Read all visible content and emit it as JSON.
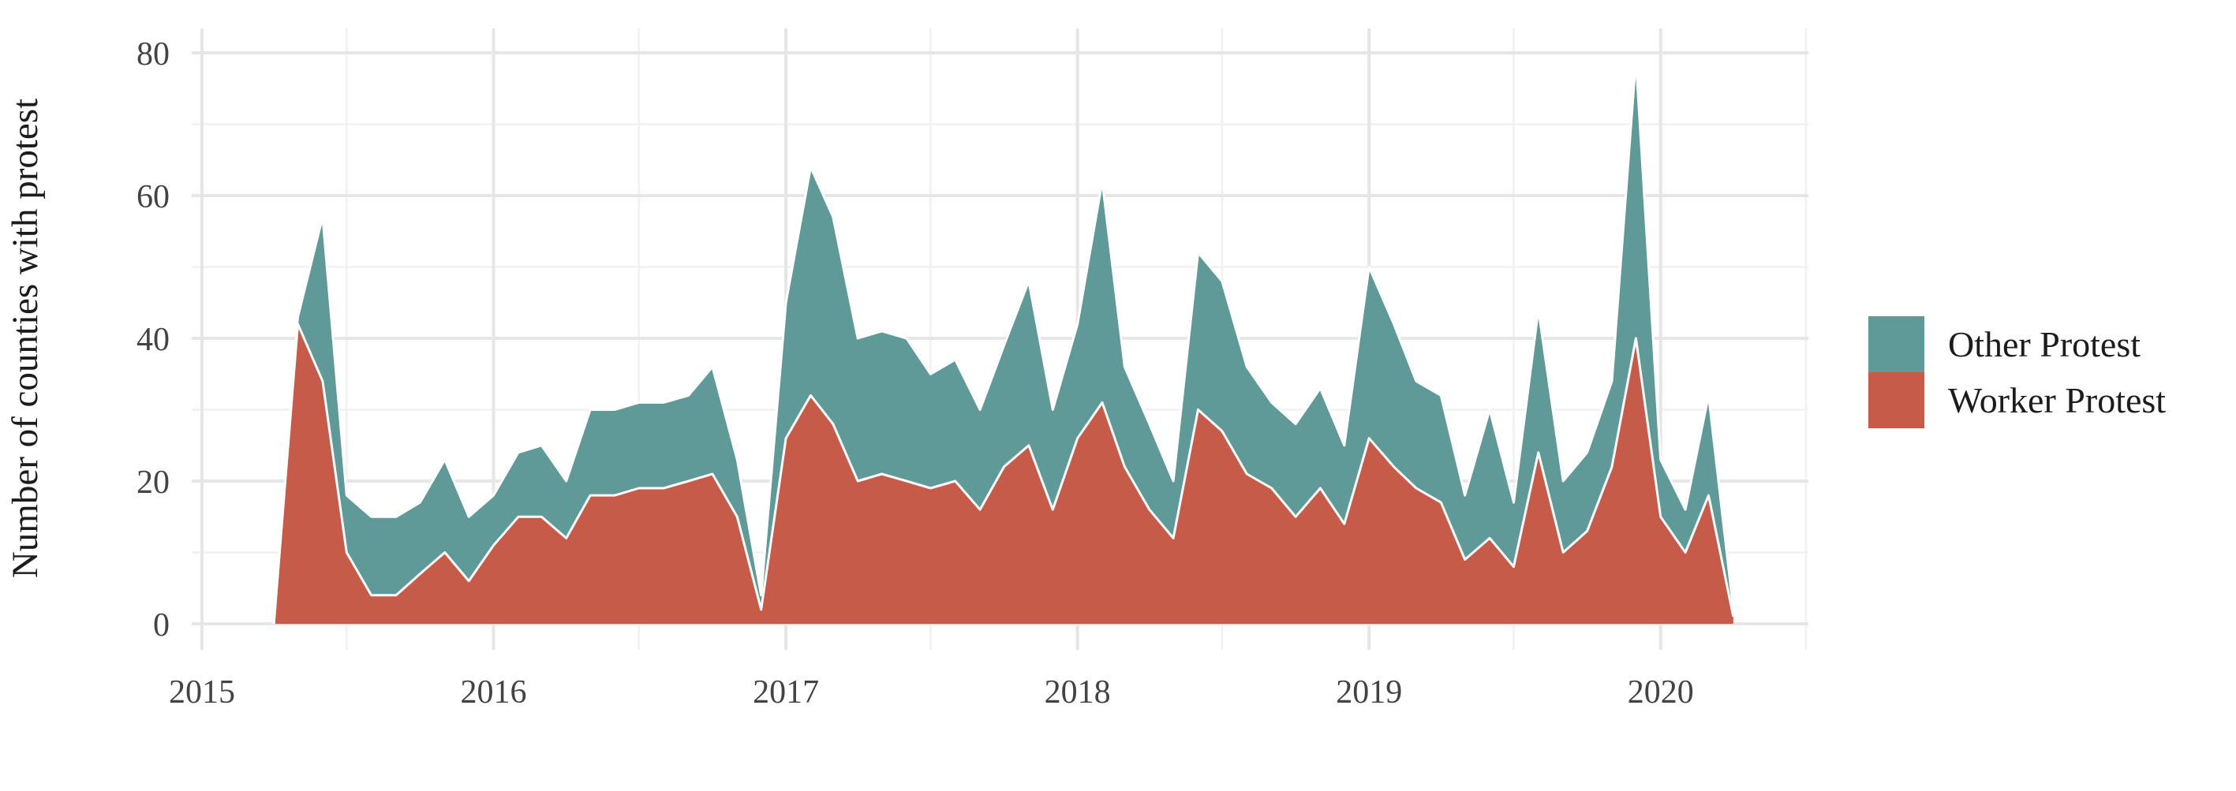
{
  "chart_data": {
    "type": "area",
    "stacked": true,
    "title": "",
    "xlabel": "",
    "ylabel": "Number of counties with protest",
    "ylim": [
      0,
      80
    ],
    "grid": "on",
    "legend_position": "right",
    "background_color": "#ffffff",
    "grid_major_color": "#e6e6e6",
    "grid_minor_color": "#f1f1f1",
    "area_outline_color": "#ffffff",
    "tick_label_color": "#434343",
    "axis_title_color": "#1c1c1c",
    "y_major_ticks": [
      0,
      20,
      40,
      60,
      80
    ],
    "y_minor_ticks": [
      10,
      30,
      50,
      70
    ],
    "x_year_ticks": [
      "2015",
      "2016",
      "2017",
      "2018",
      "2019",
      "2020"
    ],
    "legend": [
      {
        "label": "Other Protest",
        "color": "#5f9a98"
      },
      {
        "label": "Worker Protest",
        "color": "#c65b4a"
      }
    ],
    "series_order_bottom_to_top": [
      "Worker Protest",
      "Other Protest"
    ],
    "points": [
      {
        "date": "2015-04",
        "worker": 0,
        "other": 0
      },
      {
        "date": "2015-05",
        "worker": 42,
        "other": 1
      },
      {
        "date": "2015-06",
        "worker": 34,
        "other": 23
      },
      {
        "date": "2015-07",
        "worker": 10,
        "other": 8
      },
      {
        "date": "2015-08",
        "worker": 4,
        "other": 11
      },
      {
        "date": "2015-09",
        "worker": 4,
        "other": 11
      },
      {
        "date": "2015-10",
        "worker": 7,
        "other": 10
      },
      {
        "date": "2015-11",
        "worker": 10,
        "other": 13
      },
      {
        "date": "2015-12",
        "worker": 6,
        "other": 9
      },
      {
        "date": "2016-01",
        "worker": 11,
        "other": 7
      },
      {
        "date": "2016-02",
        "worker": 15,
        "other": 9
      },
      {
        "date": "2016-03",
        "worker": 15,
        "other": 10
      },
      {
        "date": "2016-04",
        "worker": 12,
        "other": 8
      },
      {
        "date": "2016-05",
        "worker": 18,
        "other": 12
      },
      {
        "date": "2016-06",
        "worker": 18,
        "other": 12
      },
      {
        "date": "2016-07",
        "worker": 19,
        "other": 12
      },
      {
        "date": "2016-08",
        "worker": 19,
        "other": 12
      },
      {
        "date": "2016-09",
        "worker": 20,
        "other": 12
      },
      {
        "date": "2016-10",
        "worker": 21,
        "other": 15
      },
      {
        "date": "2016-11",
        "worker": 15,
        "other": 8
      },
      {
        "date": "2016-12",
        "worker": 2,
        "other": 2
      },
      {
        "date": "2017-01",
        "worker": 26,
        "other": 19
      },
      {
        "date": "2017-02",
        "worker": 32,
        "other": 32
      },
      {
        "date": "2017-03",
        "worker": 28,
        "other": 29
      },
      {
        "date": "2017-04",
        "worker": 20,
        "other": 20
      },
      {
        "date": "2017-05",
        "worker": 21,
        "other": 20
      },
      {
        "date": "2017-06",
        "worker": 20,
        "other": 20
      },
      {
        "date": "2017-07",
        "worker": 19,
        "other": 16
      },
      {
        "date": "2017-08",
        "worker": 20,
        "other": 17
      },
      {
        "date": "2017-09",
        "worker": 16,
        "other": 14
      },
      {
        "date": "2017-10",
        "worker": 22,
        "other": 17
      },
      {
        "date": "2017-11",
        "worker": 25,
        "other": 23
      },
      {
        "date": "2017-12",
        "worker": 16,
        "other": 14
      },
      {
        "date": "2018-01",
        "worker": 26,
        "other": 16
      },
      {
        "date": "2018-02",
        "worker": 31,
        "other": 31
      },
      {
        "date": "2018-03",
        "worker": 22,
        "other": 14
      },
      {
        "date": "2018-04",
        "worker": 16,
        "other": 12
      },
      {
        "date": "2018-05",
        "worker": 12,
        "other": 8
      },
      {
        "date": "2018-06",
        "worker": 30,
        "other": 22
      },
      {
        "date": "2018-07",
        "worker": 27,
        "other": 21
      },
      {
        "date": "2018-08",
        "worker": 21,
        "other": 15
      },
      {
        "date": "2018-09",
        "worker": 19,
        "other": 12
      },
      {
        "date": "2018-10",
        "worker": 15,
        "other": 13
      },
      {
        "date": "2018-11",
        "worker": 19,
        "other": 14
      },
      {
        "date": "2018-12",
        "worker": 14,
        "other": 11
      },
      {
        "date": "2019-01",
        "worker": 26,
        "other": 24
      },
      {
        "date": "2019-02",
        "worker": 22,
        "other": 20
      },
      {
        "date": "2019-03",
        "worker": 19,
        "other": 15
      },
      {
        "date": "2019-04",
        "worker": 17,
        "other": 15
      },
      {
        "date": "2019-05",
        "worker": 9,
        "other": 9
      },
      {
        "date": "2019-06",
        "worker": 12,
        "other": 18
      },
      {
        "date": "2019-07",
        "worker": 8,
        "other": 9
      },
      {
        "date": "2019-08",
        "worker": 24,
        "other": 20
      },
      {
        "date": "2019-09",
        "worker": 10,
        "other": 10
      },
      {
        "date": "2019-10",
        "worker": 13,
        "other": 11
      },
      {
        "date": "2019-11",
        "worker": 22,
        "other": 12
      },
      {
        "date": "2019-12",
        "worker": 40,
        "other": 39
      },
      {
        "date": "2020-01",
        "worker": 15,
        "other": 8
      },
      {
        "date": "2020-02",
        "worker": 10,
        "other": 6
      },
      {
        "date": "2020-03",
        "worker": 18,
        "other": 14
      },
      {
        "date": "2020-04",
        "worker": 1,
        "other": 1
      }
    ]
  }
}
